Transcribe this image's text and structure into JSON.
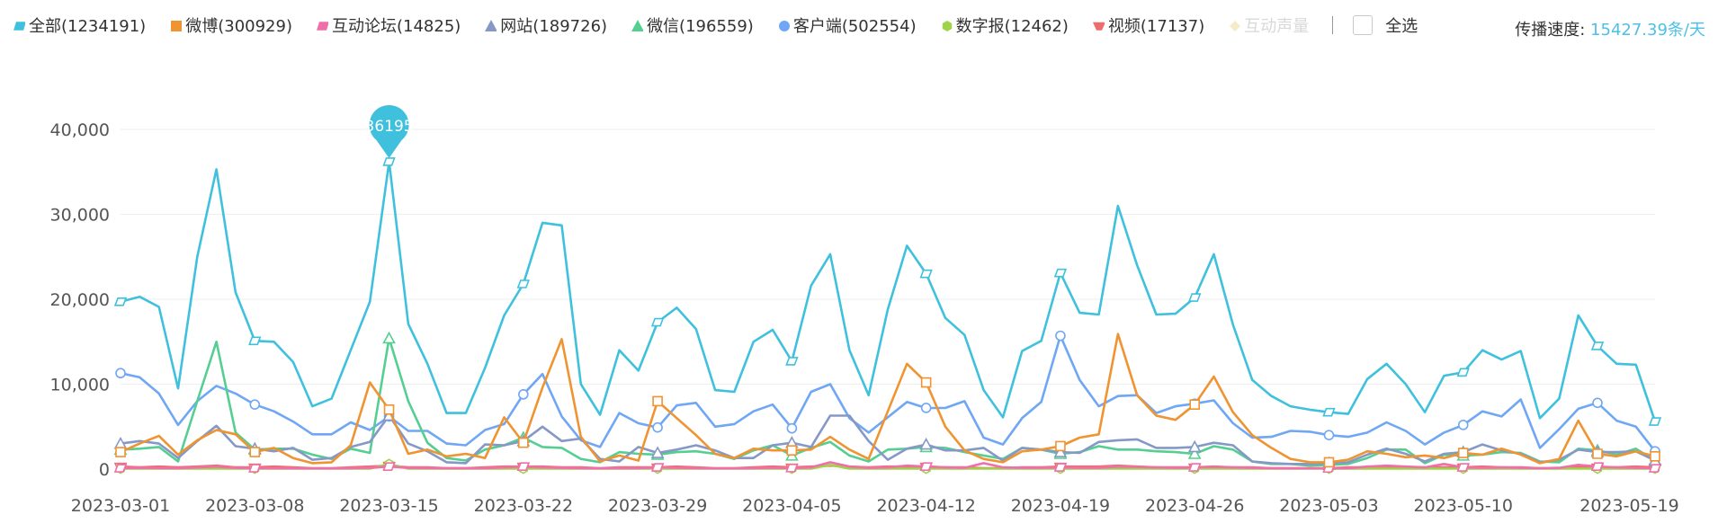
{
  "legend": {
    "items": [
      {
        "label": "全部(1234191)",
        "color": "#3fc1dd",
        "marker": "parallelogram",
        "active": true
      },
      {
        "label": "微博(300929)",
        "color": "#ef9431",
        "marker": "square",
        "active": true
      },
      {
        "label": "互动论坛(14825)",
        "color": "#ef6fa8",
        "marker": "parallelogram",
        "active": true
      },
      {
        "label": "网站(189726)",
        "color": "#8598c6",
        "marker": "triangle",
        "active": true
      },
      {
        "label": "微信(196559)",
        "color": "#55cf91",
        "marker": "triangle",
        "active": true
      },
      {
        "label": "客户端(502554)",
        "color": "#6fa7f5",
        "marker": "circle",
        "active": true
      },
      {
        "label": "数字报(12462)",
        "color": "#9ed44a",
        "marker": "hexagon",
        "active": true
      },
      {
        "label": "视频(17137)",
        "color": "#ee6d6d",
        "marker": "trapezoid",
        "active": true
      },
      {
        "label": "互动声量",
        "color": "#f5ecc7",
        "marker": "diamond",
        "active": false
      }
    ],
    "select_all_label": "全选"
  },
  "header": {
    "speed_label": "传播速度:",
    "speed_value": "15427.39条/天"
  },
  "chart_data": {
    "type": "line",
    "ylim": [
      0,
      40000
    ],
    "yticks": [
      0,
      10000,
      20000,
      30000,
      40000
    ],
    "ytick_labels": [
      "0",
      "10,000",
      "20,000",
      "30,000",
      "40,000"
    ],
    "xtick_labels": [
      "2023-03-01",
      "2023-03-08",
      "2023-03-15",
      "2023-03-22",
      "2023-03-29",
      "2023-04-05",
      "2023-04-12",
      "2023-04-19",
      "2023-04-26",
      "2023-05-03",
      "2023-05-10",
      "2023-05-19"
    ],
    "x_start": "2023-03-01",
    "x_end": "2023-05-19",
    "grid": "horizontal",
    "tooltip_pin": {
      "date": "2023-03-15",
      "value": 36195,
      "label": "36195"
    },
    "series": [
      {
        "name": "全部",
        "color": "#3fc1dd",
        "marker": "parallelogram",
        "values": [
          19700,
          20300,
          19100,
          9500,
          25000,
          35300,
          20800,
          15100,
          15000,
          12600,
          7400,
          8300,
          14000,
          19700,
          36195,
          17100,
          12400,
          6600,
          6600,
          11900,
          18100,
          21800,
          29000,
          28700,
          10000,
          6400,
          14000,
          11600,
          17300,
          19000,
          16500,
          9300,
          9100,
          15000,
          16400,
          12700,
          21600,
          25300,
          14000,
          8700,
          18800,
          26300,
          23000,
          17800,
          15800,
          9300,
          6100,
          13900,
          15100,
          23100,
          18400,
          18200,
          31000,
          24000,
          18200,
          18300,
          20200,
          25300,
          17000,
          10500,
          8600,
          7400,
          7000,
          6700,
          6500,
          10600,
          12400,
          10000,
          6700,
          11000,
          11400,
          14000,
          12900,
          13900,
          6000,
          8300,
          18100,
          14500,
          12400,
          12300,
          5600
        ]
      },
      {
        "name": "微博",
        "color": "#ef9431",
        "marker": "square",
        "values": [
          2000,
          3000,
          3900,
          1700,
          3400,
          4600,
          4100,
          2000,
          2500,
          1300,
          700,
          800,
          2800,
          10200,
          7000,
          1800,
          2300,
          1500,
          1800,
          1300,
          6100,
          3100,
          9600,
          15300,
          3800,
          900,
          1600,
          1000,
          8000,
          6000,
          4000,
          1800,
          1300,
          2400,
          2200,
          2200,
          2300,
          3800,
          2300,
          1200,
          6800,
          12400,
          10200,
          5000,
          2200,
          1200,
          800,
          2100,
          2300,
          2700,
          3700,
          4100,
          15900,
          8700,
          6300,
          5800,
          7600,
          10900,
          6700,
          4000,
          2500,
          1200,
          800,
          800,
          1100,
          2100,
          1800,
          1400,
          1600,
          1300,
          1900,
          1700,
          2400,
          1700,
          700,
          1200,
          5700,
          1800,
          1500,
          2100,
          1500
        ]
      },
      {
        "name": "互动论坛",
        "color": "#ef6fa8",
        "marker": "parallelogram",
        "values": [
          100,
          150,
          120,
          100,
          200,
          300,
          150,
          100,
          100,
          80,
          80,
          80,
          100,
          150,
          300,
          150,
          120,
          100,
          100,
          100,
          200,
          300,
          200,
          150,
          100,
          80,
          100,
          100,
          200,
          150,
          100,
          80,
          80,
          100,
          150,
          120,
          200,
          800,
          300,
          150,
          200,
          400,
          300,
          200,
          150,
          700,
          200,
          150,
          150,
          200,
          150,
          150,
          300,
          250,
          200,
          150,
          200,
          250,
          200,
          150,
          100,
          80,
          80,
          80,
          100,
          300,
          400,
          300,
          200,
          600,
          200,
          150,
          200,
          150,
          100,
          150,
          500,
          300,
          200,
          150,
          100
        ]
      },
      {
        "name": "网站",
        "color": "#8598c6",
        "marker": "triangle",
        "values": [
          3000,
          3300,
          3000,
          1300,
          3300,
          5100,
          2700,
          2400,
          2100,
          2500,
          1100,
          1300,
          2600,
          3200,
          6300,
          3000,
          2100,
          800,
          700,
          2900,
          2800,
          3300,
          5000,
          3300,
          3600,
          1200,
          900,
          2600,
          1900,
          2300,
          2800,
          2200,
          1300,
          1300,
          2800,
          3100,
          2600,
          6300,
          6300,
          3300,
          1100,
          2400,
          2900,
          2200,
          2200,
          2500,
          1000,
          2500,
          2300,
          2000,
          1900,
          3200,
          3400,
          3500,
          2500,
          2500,
          2600,
          3100,
          2800,
          900,
          700,
          600,
          600,
          700,
          800,
          1700,
          2400,
          1800,
          900,
          1800,
          2000,
          2900,
          2200,
          1800,
          800,
          1100,
          2300,
          2000,
          2000,
          2100,
          1000
        ]
      },
      {
        "name": "微信",
        "color": "#55cf91",
        "marker": "triangle",
        "values": [
          2300,
          2400,
          2600,
          900,
          8000,
          15000,
          4300,
          2300,
          2400,
          2400,
          1700,
          1200,
          2400,
          1900,
          15400,
          8000,
          3100,
          1300,
          1000,
          2300,
          2800,
          3700,
          2600,
          2500,
          1200,
          800,
          2000,
          1800,
          1700,
          2000,
          2100,
          1800,
          1200,
          2200,
          2800,
          1600,
          2500,
          3200,
          1600,
          900,
          2300,
          2400,
          2600,
          2500,
          2000,
          1600,
          1200,
          2500,
          2300,
          1800,
          2000,
          2700,
          2300,
          2300,
          2100,
          2000,
          1800,
          2700,
          2300,
          900,
          600,
          600,
          400,
          500,
          600,
          1300,
          2300,
          2300,
          700,
          1700,
          1600,
          1700,
          2000,
          1900,
          900,
          800,
          2400,
          2200,
          1700,
          2400,
          1000
        ]
      },
      {
        "name": "客户端",
        "color": "#6fa7f5",
        "marker": "circle",
        "values": [
          11300,
          10800,
          8900,
          5200,
          8000,
          9800,
          8900,
          7600,
          6800,
          5600,
          4100,
          4100,
          5500,
          4600,
          6200,
          4500,
          4500,
          3000,
          2800,
          4600,
          5300,
          8800,
          11200,
          6200,
          3400,
          2600,
          6600,
          5400,
          4900,
          7500,
          7800,
          5000,
          5300,
          6800,
          7600,
          4800,
          9100,
          10000,
          6000,
          4300,
          6100,
          7900,
          7200,
          7200,
          8000,
          3700,
          2900,
          6000,
          7900,
          15700,
          10500,
          7400,
          8600,
          8700,
          6600,
          7400,
          7700,
          8100,
          5400,
          3700,
          3800,
          4500,
          4400,
          4000,
          3800,
          4300,
          5500,
          4500,
          2900,
          4300,
          5200,
          6800,
          6200,
          8200,
          2500,
          4700,
          7100,
          7800,
          5700,
          5000,
          2100
        ]
      },
      {
        "name": "数字报",
        "color": "#9ed44a",
        "marker": "hexagon",
        "values": [
          50,
          50,
          50,
          50,
          50,
          50,
          50,
          50,
          50,
          50,
          50,
          50,
          50,
          50,
          600,
          50,
          50,
          50,
          50,
          50,
          50,
          50,
          50,
          50,
          50,
          50,
          50,
          50,
          50,
          50,
          50,
          50,
          50,
          50,
          50,
          50,
          50,
          500,
          50,
          50,
          50,
          50,
          50,
          50,
          50,
          50,
          50,
          50,
          50,
          50,
          50,
          50,
          50,
          50,
          50,
          50,
          50,
          50,
          50,
          50,
          50,
          50,
          50,
          50,
          50,
          50,
          50,
          50,
          50,
          50,
          50,
          50,
          50,
          50,
          50,
          50,
          50,
          50,
          50,
          50,
          50
        ]
      },
      {
        "name": "视频",
        "color": "#ee6d6d",
        "marker": "trapezoid",
        "values": [
          300,
          200,
          300,
          200,
          300,
          400,
          200,
          200,
          300,
          200,
          100,
          100,
          200,
          300,
          400,
          200,
          200,
          100,
          100,
          200,
          300,
          300,
          300,
          200,
          200,
          100,
          200,
          200,
          200,
          300,
          200,
          100,
          100,
          200,
          300,
          200,
          300,
          400,
          300,
          200,
          300,
          300,
          300,
          200,
          200,
          100,
          100,
          200,
          200,
          300,
          300,
          300,
          400,
          300,
          200,
          200,
          200,
          300,
          200,
          200,
          100,
          100,
          100,
          100,
          200,
          200,
          300,
          200,
          200,
          200,
          200,
          300,
          200,
          200,
          100,
          100,
          300,
          200,
          200,
          300,
          200
        ]
      }
    ]
  }
}
